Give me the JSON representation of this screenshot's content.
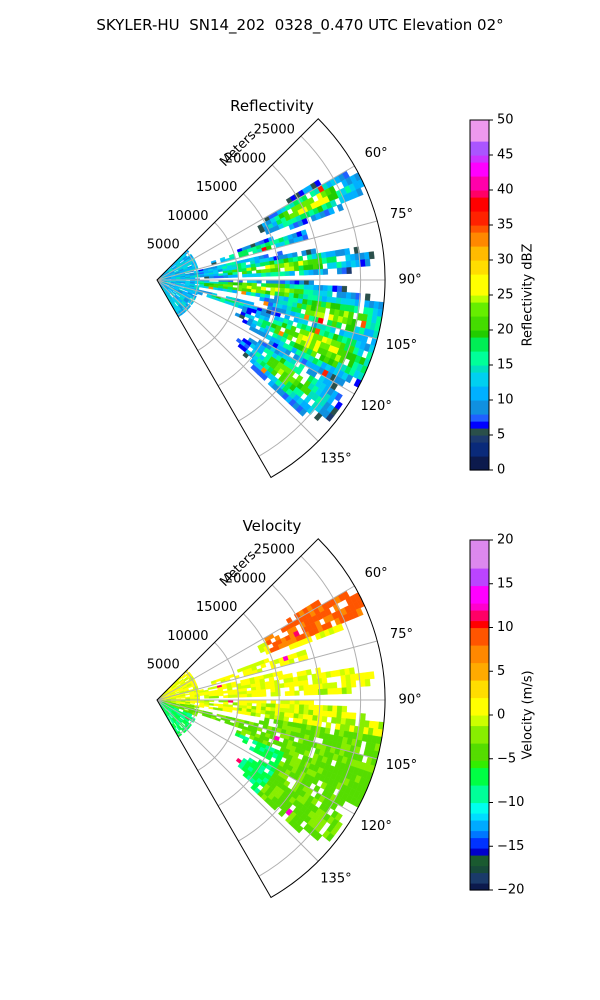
{
  "title": "SKYLER-HU  SN14_202  0328_0.470 UTC Elevation 02°",
  "chart_data": [
    {
      "type": "heatmap",
      "title": "Reflectivity",
      "radial_axis_label": "Meters",
      "radial_ticks": [
        "5000",
        "10000",
        "15000",
        "20000",
        "25000"
      ],
      "radial_tick_values": [
        5000,
        10000,
        15000,
        20000,
        25000
      ],
      "rmax": 28000,
      "azimuth_range_deg": [
        45,
        150
      ],
      "azimuth_ticks": [
        "60°",
        "75°",
        "90°",
        "105°",
        "120°",
        "135°"
      ],
      "azimuth_tick_values": [
        60,
        75,
        90,
        105,
        120,
        135
      ],
      "grid": true,
      "colorbar": {
        "label": "Reflectivity dBZ",
        "min": 0,
        "max": 50,
        "ticks": [
          "0",
          "5",
          "10",
          "15",
          "20",
          "25",
          "30",
          "35",
          "40",
          "45",
          "50"
        ],
        "tick_values": [
          0,
          5,
          10,
          15,
          20,
          25,
          30,
          35,
          40,
          45,
          50
        ]
      }
    },
    {
      "type": "heatmap",
      "title": "Velocity",
      "radial_axis_label": "Meters",
      "radial_ticks": [
        "5000",
        "10000",
        "15000",
        "20000",
        "25000"
      ],
      "radial_tick_values": [
        5000,
        10000,
        15000,
        20000,
        25000
      ],
      "rmax": 28000,
      "azimuth_range_deg": [
        45,
        150
      ],
      "azimuth_ticks": [
        "60°",
        "75°",
        "90°",
        "105°",
        "120°",
        "135°"
      ],
      "azimuth_tick_values": [
        60,
        75,
        90,
        105,
        120,
        135
      ],
      "grid": true,
      "colorbar": {
        "label": "Velocity (m/s)",
        "min": -20,
        "max": 20,
        "ticks": [
          "−20",
          "−15",
          "−10",
          "−5",
          "0",
          "5",
          "10",
          "15",
          "20"
        ],
        "tick_values": [
          -20,
          -15,
          -10,
          -5,
          0,
          5,
          10,
          15,
          20
        ]
      }
    }
  ]
}
